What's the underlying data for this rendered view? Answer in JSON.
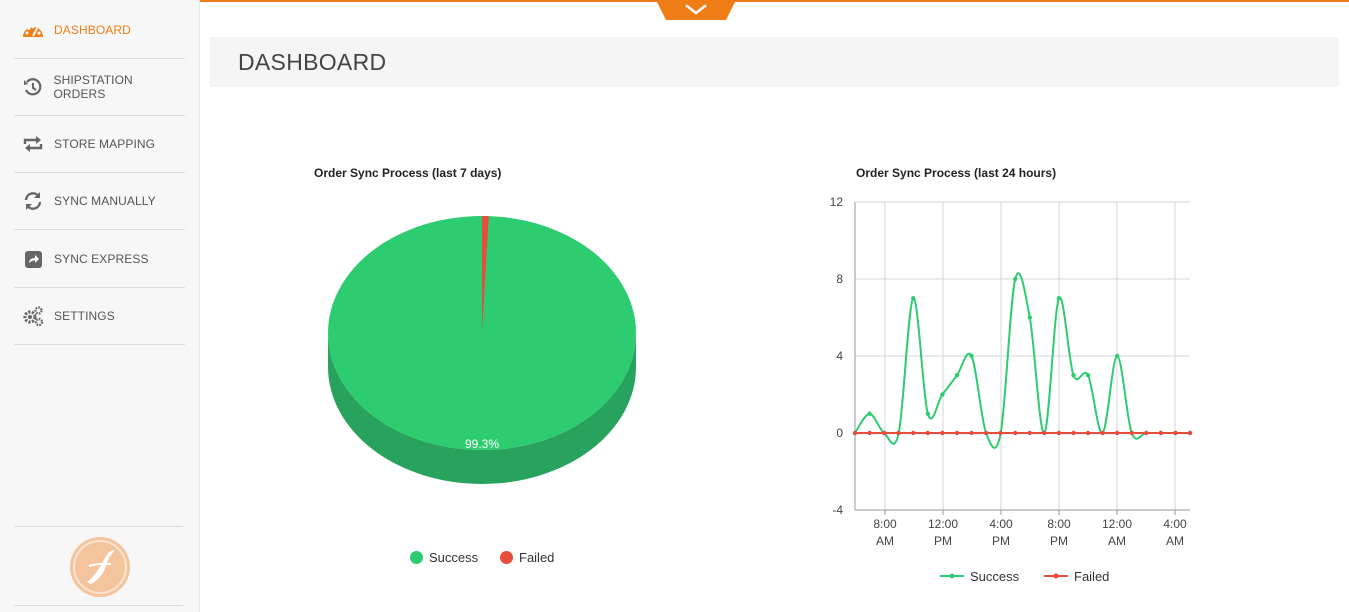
{
  "sidebar": {
    "items": [
      {
        "label": "DASHBOARD",
        "icon": "speedometer-icon",
        "active": true
      },
      {
        "label": "SHIPSTATION ORDERS",
        "icon": "history-icon"
      },
      {
        "label": "STORE MAPPING",
        "icon": "swap-arrows-icon"
      },
      {
        "label": "SYNC MANUALLY",
        "icon": "refresh-icon"
      },
      {
        "label": "SYNC EXPRESS",
        "icon": "share-square-icon"
      },
      {
        "label": "SETTINGS",
        "icon": "gears-icon"
      }
    ]
  },
  "header": {
    "title": "DASHBOARD"
  },
  "colors": {
    "accent": "#ef7d16",
    "success": "#2ecc71",
    "failed": "#e74c3c"
  },
  "chart_data": [
    {
      "type": "pie",
      "title": "Order Sync Process (last 7 days)",
      "labels": [
        "Success",
        "Failed"
      ],
      "values": [
        99.3,
        0.7
      ],
      "data_label": "99.3%",
      "legend": "bottom",
      "legend_labels": {
        "success": "Success",
        "failed": "Failed"
      }
    },
    {
      "type": "line",
      "title": "Order Sync Process (last 24 hours)",
      "x_ticks": [
        [
          "8:00",
          "AM"
        ],
        [
          "12:00",
          "PM"
        ],
        [
          "4:00",
          "PM"
        ],
        [
          "8:00",
          "PM"
        ],
        [
          "12:00",
          "AM"
        ],
        [
          "4:00",
          "AM"
        ]
      ],
      "y_ticks": [
        "12",
        "8",
        "4",
        "0",
        "-4"
      ],
      "ylim": [
        -4,
        12
      ],
      "legend": "bottom",
      "legend_labels": {
        "success": "Success",
        "failed": "Failed"
      },
      "series": [
        {
          "name": "Success",
          "values": [
            0,
            1,
            0,
            0,
            7,
            1,
            2,
            3,
            4,
            0,
            0,
            8,
            6,
            0,
            7,
            3,
            3,
            0,
            4,
            0,
            0,
            0,
            0,
            0
          ]
        },
        {
          "name": "Failed",
          "values": [
            0,
            0,
            0,
            0,
            0,
            0,
            0,
            0,
            0,
            0,
            0,
            0,
            0,
            0,
            0,
            0,
            0,
            0,
            0,
            0,
            0,
            0,
            0,
            0
          ]
        }
      ]
    }
  ]
}
